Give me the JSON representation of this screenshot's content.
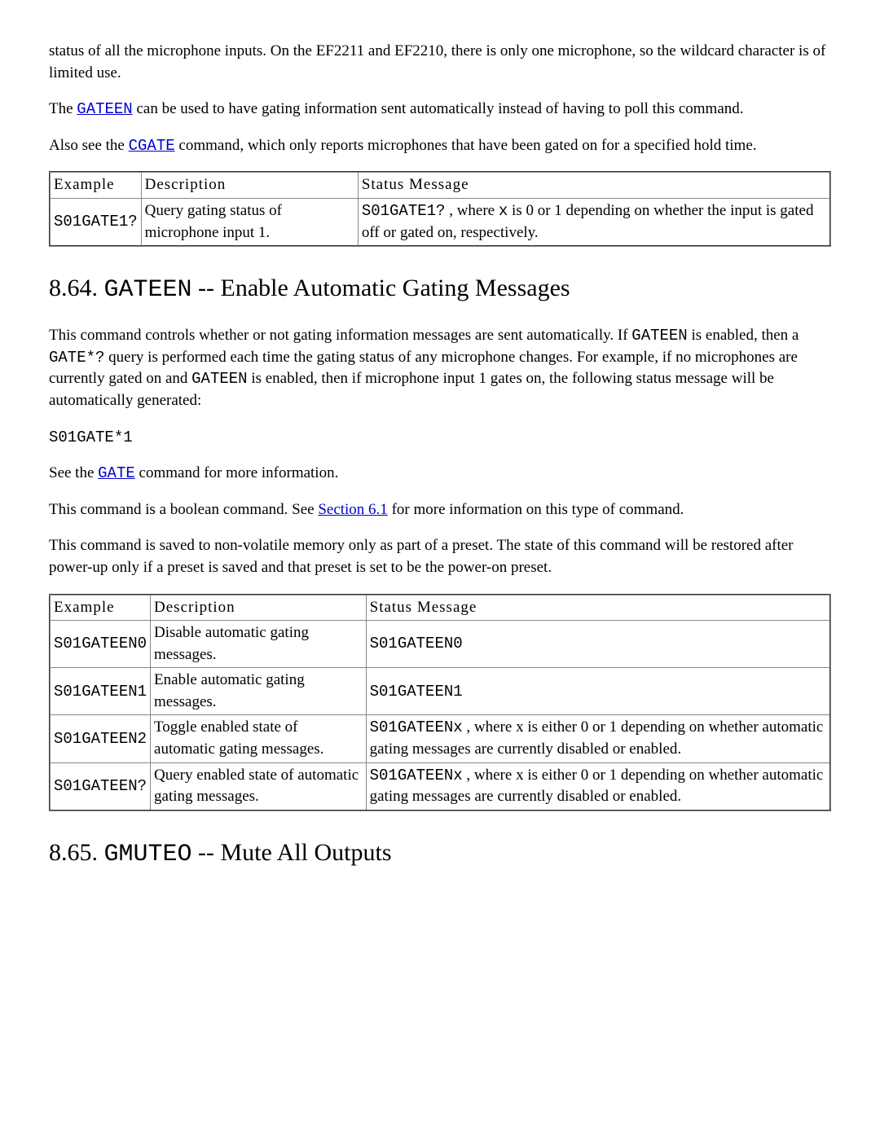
{
  "intro": {
    "p1": "status of all the microphone inputs. On the EF2211 and EF2210, there is only one microphone, so the wildcard character is of limited use.",
    "p2a": "The ",
    "p2_link": "GATEEN",
    "p2b": " can be used to have gating information sent automatically instead of having to poll this command.",
    "p3a": "Also see the ",
    "p3_link": "CGATE",
    "p3b": " command, which only reports microphones that have been gated on for a specified hold time."
  },
  "table1": {
    "headers": {
      "c1": "Example",
      "c2": "Description",
      "c3": "Status Message"
    },
    "rows": [
      {
        "example": "S01GATE1?",
        "desc": "Query gating status of microphone input 1.",
        "status_a": "S01GATE1?",
        "status_b": " , where ",
        "status_c": "x",
        "status_d": " is 0 or 1 depending on whether the input is gated off or gated on, respectively."
      }
    ]
  },
  "sec864": {
    "num": "8.64. ",
    "cmd": "GATEEN",
    "rest": " -- Enable Automatic Gating Messages",
    "p1a": "This command controls whether or not gating information messages are sent automatically. If ",
    "p1b": "GATEEN",
    "p1c": " is enabled, then a ",
    "p1d": "GATE*?",
    "p1e": " query is performed each time the gating status of any microphone changes. For example, if no microphones are currently gated on and ",
    "p1f": "GATEEN",
    "p1g": " is enabled, then if microphone input 1 gates on, the following status message will be automatically generated:",
    "code": "S01GATE*1",
    "p2a": "See the ",
    "p2_link": "GATE",
    "p2b": " command for more information.",
    "p3a": "This command is a boolean command. See ",
    "p3_link": "Section 6.1",
    "p3b": " for more information on this type of command.",
    "p4": "This command is saved to non-volatile memory only as part of a preset. The state of this command will be restored after power-up only if a preset is saved and that preset is set to be the power-on preset."
  },
  "table2": {
    "headers": {
      "c1": "Example",
      "c2": "Description",
      "c3": "Status Message"
    },
    "rows": [
      {
        "example": "S01GATEEN0",
        "desc": "Disable automatic gating messages.",
        "status_mono": "S01GATEEN0",
        "status_rest": ""
      },
      {
        "example": "S01GATEEN1",
        "desc": "Enable automatic gating messages.",
        "status_mono": "S01GATEEN1",
        "status_rest": ""
      },
      {
        "example": "S01GATEEN2",
        "desc": "Toggle enabled state of automatic gating messages.",
        "status_mono": "S01GATEENx",
        "status_rest": " , where x is either 0 or 1 depending on whether automatic gating messages are currently disabled or enabled."
      },
      {
        "example": "S01GATEEN?",
        "desc": "Query enabled state of automatic gating messages.",
        "status_mono": "S01GATEENx",
        "status_rest": " , where x is either 0 or 1 depending on whether automatic gating messages are currently disabled or enabled."
      }
    ]
  },
  "sec865": {
    "num": "8.65. ",
    "cmd": "GMUTEO",
    "rest": " -- Mute All Outputs"
  }
}
